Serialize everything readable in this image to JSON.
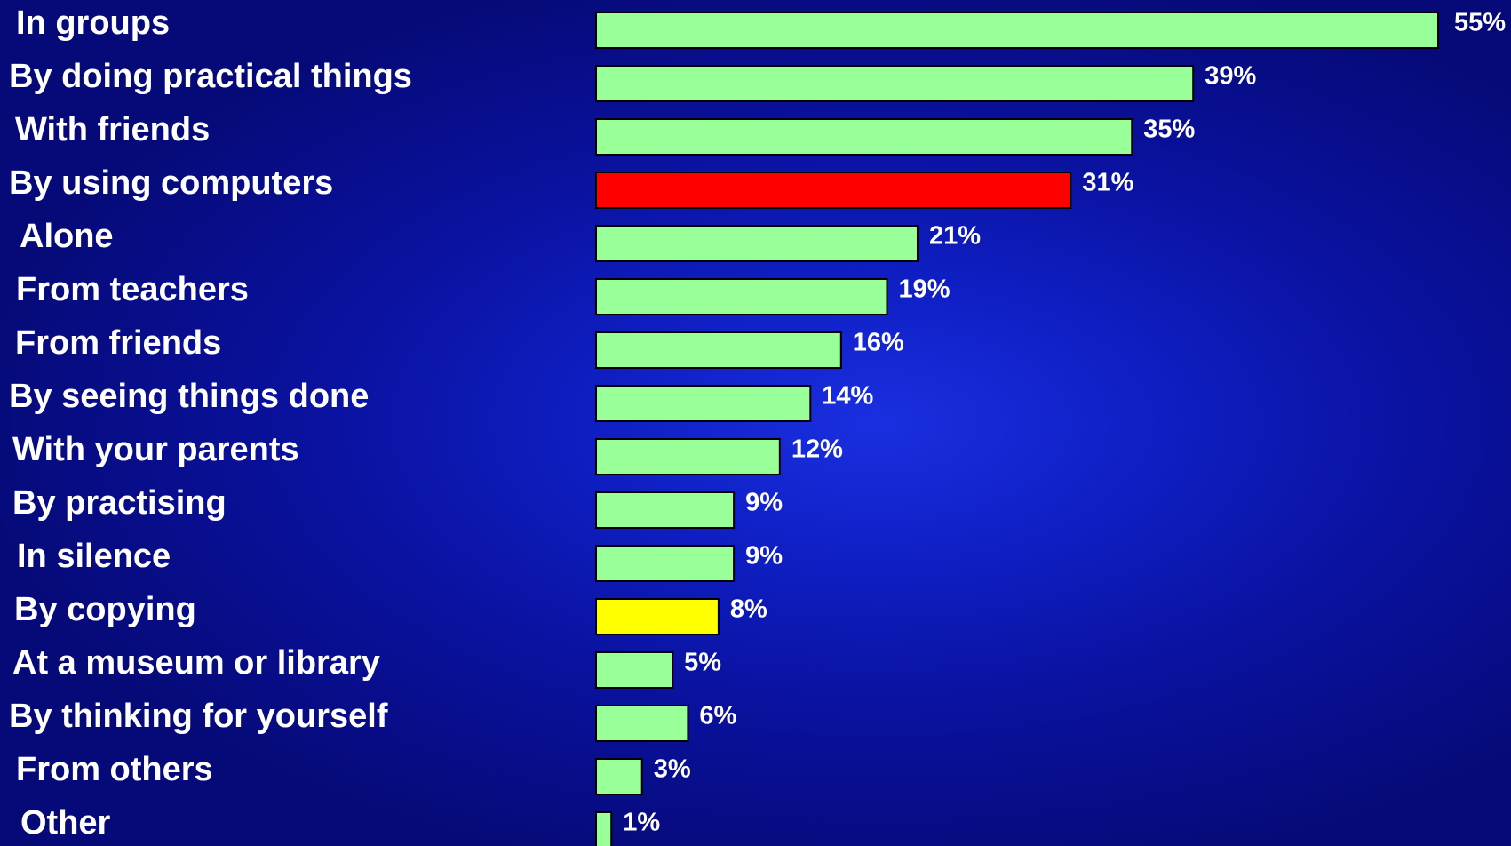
{
  "chart_data": {
    "type": "bar",
    "orientation": "horizontal",
    "categories": [
      "In groups",
      "By doing practical things",
      "With friends",
      "By using computers",
      "Alone",
      "From teachers",
      "From friends",
      "By seeing things done",
      "With your parents",
      "By practising",
      "In silence",
      "By copying",
      "At a museum or library",
      "By thinking for yourself",
      "From others",
      "Other"
    ],
    "values": [
      55,
      39,
      35,
      31,
      21,
      19,
      16,
      14,
      12,
      9,
      9,
      8,
      5,
      6,
      3,
      1
    ],
    "value_labels": [
      "55%",
      "39%",
      "35%",
      "31%",
      "21%",
      "19%",
      "16%",
      "14%",
      "12%",
      "9%",
      "9%",
      "8%",
      "5%",
      "6%",
      "3%",
      "1%"
    ],
    "bar_colors": [
      "#99ff99",
      "#99ff99",
      "#99ff99",
      "#ff0000",
      "#99ff99",
      "#99ff99",
      "#99ff99",
      "#99ff99",
      "#99ff99",
      "#99ff99",
      "#99ff99",
      "#ffff00",
      "#99ff99",
      "#99ff99",
      "#99ff99",
      "#99ff99"
    ],
    "title": "",
    "xlabel": "",
    "ylabel": "",
    "xlim": [
      0,
      55
    ],
    "grid": false,
    "legend": "none"
  },
  "colors": {
    "default_bar": "#99ff99",
    "highlight_red": "#ff0000",
    "highlight_yellow": "#ffff00",
    "text": "#ffffff",
    "background": "#0a14b0"
  }
}
